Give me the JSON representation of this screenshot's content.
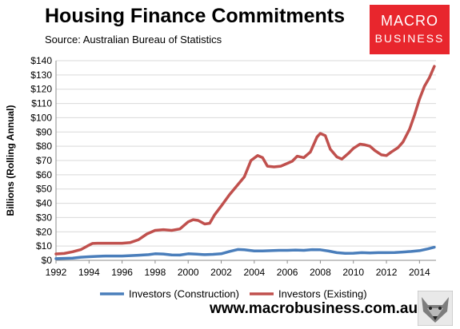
{
  "header": {
    "title": "Housing Finance Commitments",
    "subtitle": "Source: Australian Bureau of Statistics"
  },
  "logo": {
    "line1": "MACRO",
    "line2": "BUSINESS",
    "color": "#e8262d"
  },
  "footer": {
    "website": "www.macrobusiness.com.au",
    "mascot_icon": "wolf-icon"
  },
  "chart_data": {
    "type": "line",
    "title": "Housing Finance Commitments",
    "subtitle": "Source: Australian Bureau of Statistics",
    "xlabel": "",
    "ylabel": "Billions (Rolling Annual)",
    "xlim": [
      1992,
      2015
    ],
    "ylim": [
      0,
      140
    ],
    "x_ticks": [
      1992,
      1994,
      1996,
      1998,
      2000,
      2002,
      2004,
      2006,
      2008,
      2010,
      2012,
      2014
    ],
    "y_ticks": [
      0,
      10,
      20,
      30,
      40,
      50,
      60,
      70,
      80,
      90,
      100,
      110,
      120,
      130,
      140
    ],
    "y_tick_labels": [
      "$0",
      "$10",
      "$20",
      "$30",
      "$40",
      "$50",
      "$60",
      "$70",
      "$80",
      "$90",
      "$100",
      "$110",
      "$120",
      "$130",
      "$140"
    ],
    "grid": "horizontal",
    "legend_position": "bottom",
    "series": [
      {
        "name": "Investors (Construction)",
        "color": "#4a7ebb",
        "points": [
          [
            1992.0,
            1.2
          ],
          [
            1993.0,
            1.5
          ],
          [
            1993.5,
            2.2
          ],
          [
            1994.0,
            2.5
          ],
          [
            1994.5,
            2.8
          ],
          [
            1995.0,
            3.0
          ],
          [
            1996.0,
            3.0
          ],
          [
            1997.0,
            3.6
          ],
          [
            1997.6,
            4.0
          ],
          [
            1998.0,
            4.6
          ],
          [
            1998.5,
            4.4
          ],
          [
            1999.0,
            3.8
          ],
          [
            1999.5,
            3.7
          ],
          [
            2000.0,
            4.6
          ],
          [
            2000.5,
            4.3
          ],
          [
            2001.0,
            4.0
          ],
          [
            2001.5,
            4.2
          ],
          [
            2002.0,
            4.6
          ],
          [
            2002.5,
            6.2
          ],
          [
            2003.0,
            7.6
          ],
          [
            2003.4,
            7.4
          ],
          [
            2004.0,
            6.6
          ],
          [
            2004.5,
            6.6
          ],
          [
            2005.0,
            6.8
          ],
          [
            2005.5,
            7.0
          ],
          [
            2006.0,
            7.0
          ],
          [
            2006.5,
            7.2
          ],
          [
            2007.0,
            7.0
          ],
          [
            2007.5,
            7.5
          ],
          [
            2008.0,
            7.4
          ],
          [
            2008.5,
            6.5
          ],
          [
            2009.0,
            5.4
          ],
          [
            2009.5,
            4.9
          ],
          [
            2010.0,
            5.0
          ],
          [
            2010.5,
            5.4
          ],
          [
            2011.0,
            5.2
          ],
          [
            2011.5,
            5.4
          ],
          [
            2012.0,
            5.4
          ],
          [
            2012.5,
            5.5
          ],
          [
            2013.0,
            5.8
          ],
          [
            2013.5,
            6.2
          ],
          [
            2014.0,
            6.8
          ],
          [
            2014.5,
            8.0
          ],
          [
            2014.9,
            9.2
          ]
        ]
      },
      {
        "name": "Investors (Existing)",
        "color": "#c0504d",
        "points": [
          [
            1992.0,
            4.5
          ],
          [
            1992.5,
            4.8
          ],
          [
            1993.0,
            6.0
          ],
          [
            1993.5,
            7.5
          ],
          [
            1993.9,
            10.0
          ],
          [
            1994.2,
            11.8
          ],
          [
            1994.5,
            12.0
          ],
          [
            1995.0,
            12.0
          ],
          [
            1996.0,
            12.0
          ],
          [
            1996.5,
            12.5
          ],
          [
            1997.0,
            14.5
          ],
          [
            1997.5,
            18.5
          ],
          [
            1998.0,
            21.0
          ],
          [
            1998.5,
            21.5
          ],
          [
            1999.0,
            21.0
          ],
          [
            1999.5,
            22.0
          ],
          [
            2000.0,
            27.0
          ],
          [
            2000.3,
            28.5
          ],
          [
            2000.6,
            28.0
          ],
          [
            2001.0,
            25.5
          ],
          [
            2001.3,
            26.0
          ],
          [
            2001.6,
            32.0
          ],
          [
            2002.0,
            38.0
          ],
          [
            2002.5,
            46.0
          ],
          [
            2003.0,
            53.0
          ],
          [
            2003.4,
            58.5
          ],
          [
            2003.8,
            70.0
          ],
          [
            2004.2,
            73.5
          ],
          [
            2004.5,
            72.0
          ],
          [
            2004.8,
            66.0
          ],
          [
            2005.2,
            65.5
          ],
          [
            2005.6,
            66.0
          ],
          [
            2006.0,
            68.0
          ],
          [
            2006.3,
            69.5
          ],
          [
            2006.6,
            73.0
          ],
          [
            2007.0,
            72.0
          ],
          [
            2007.4,
            76.0
          ],
          [
            2007.8,
            86.5
          ],
          [
            2008.0,
            89.0
          ],
          [
            2008.3,
            87.5
          ],
          [
            2008.6,
            78.0
          ],
          [
            2009.0,
            72.5
          ],
          [
            2009.3,
            71.0
          ],
          [
            2009.7,
            75.0
          ],
          [
            2010.0,
            78.5
          ],
          [
            2010.4,
            81.5
          ],
          [
            2010.7,
            81.0
          ],
          [
            2011.0,
            80.0
          ],
          [
            2011.3,
            77.0
          ],
          [
            2011.7,
            74.0
          ],
          [
            2012.0,
            73.5
          ],
          [
            2012.3,
            76.0
          ],
          [
            2012.7,
            79.0
          ],
          [
            2013.0,
            83.0
          ],
          [
            2013.4,
            92.0
          ],
          [
            2013.7,
            102.0
          ],
          [
            2014.0,
            113.0
          ],
          [
            2014.3,
            122.0
          ],
          [
            2014.6,
            128.0
          ],
          [
            2014.9,
            136.0
          ]
        ]
      }
    ]
  }
}
